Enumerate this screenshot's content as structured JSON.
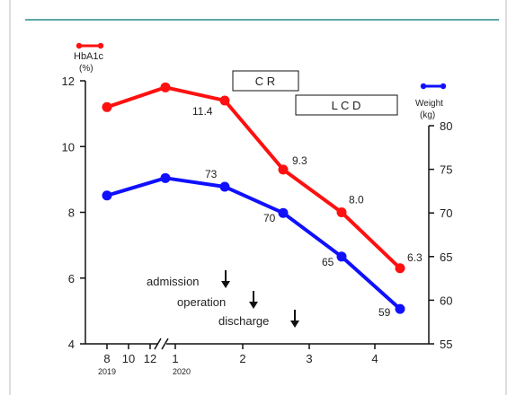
{
  "chart_data": {
    "type": "line",
    "x_ticks": [
      {
        "label": "8",
        "sub": "2019"
      },
      {
        "label": "10",
        "sub": ""
      },
      {
        "label": "12",
        "sub": ""
      },
      {
        "label": "1",
        "sub": "2020"
      },
      {
        "label": "2",
        "sub": ""
      },
      {
        "label": "3",
        "sub": ""
      },
      {
        "label": "4",
        "sub": ""
      }
    ],
    "y_left": {
      "label_line1": "HbA1c",
      "label_line2": "(%)",
      "ticks": [
        4,
        6,
        8,
        10,
        12
      ],
      "range": [
        4,
        12
      ]
    },
    "y_right": {
      "label_line1": "Weight",
      "label_line2": "(kg)",
      "ticks": [
        55,
        60,
        65,
        70,
        75,
        80
      ],
      "range": [
        55,
        80
      ]
    },
    "x_points": [
      "8 2019",
      "1 2020",
      "2020-02a",
      "2020-02b",
      "2020-03",
      "2020-04"
    ],
    "series": [
      {
        "name": "HbA1c",
        "axis": "left",
        "color": "#ff1010",
        "values": [
          11.2,
          11.8,
          11.4,
          9.3,
          8.0,
          6.3
        ],
        "labels": [
          "",
          "",
          "11.4",
          "9.3",
          "8.0",
          "6.3"
        ]
      },
      {
        "name": "Weight",
        "axis": "right",
        "color": "#1010ff",
        "values": [
          72,
          74,
          73,
          70,
          65,
          59
        ],
        "labels": [
          "",
          "",
          "73",
          "70",
          "65",
          "59"
        ]
      }
    ],
    "annotations": {
      "boxes": [
        "C R",
        "L C D"
      ],
      "arrows": [
        "admission",
        "operation",
        "discharge"
      ]
    },
    "grid": false
  }
}
